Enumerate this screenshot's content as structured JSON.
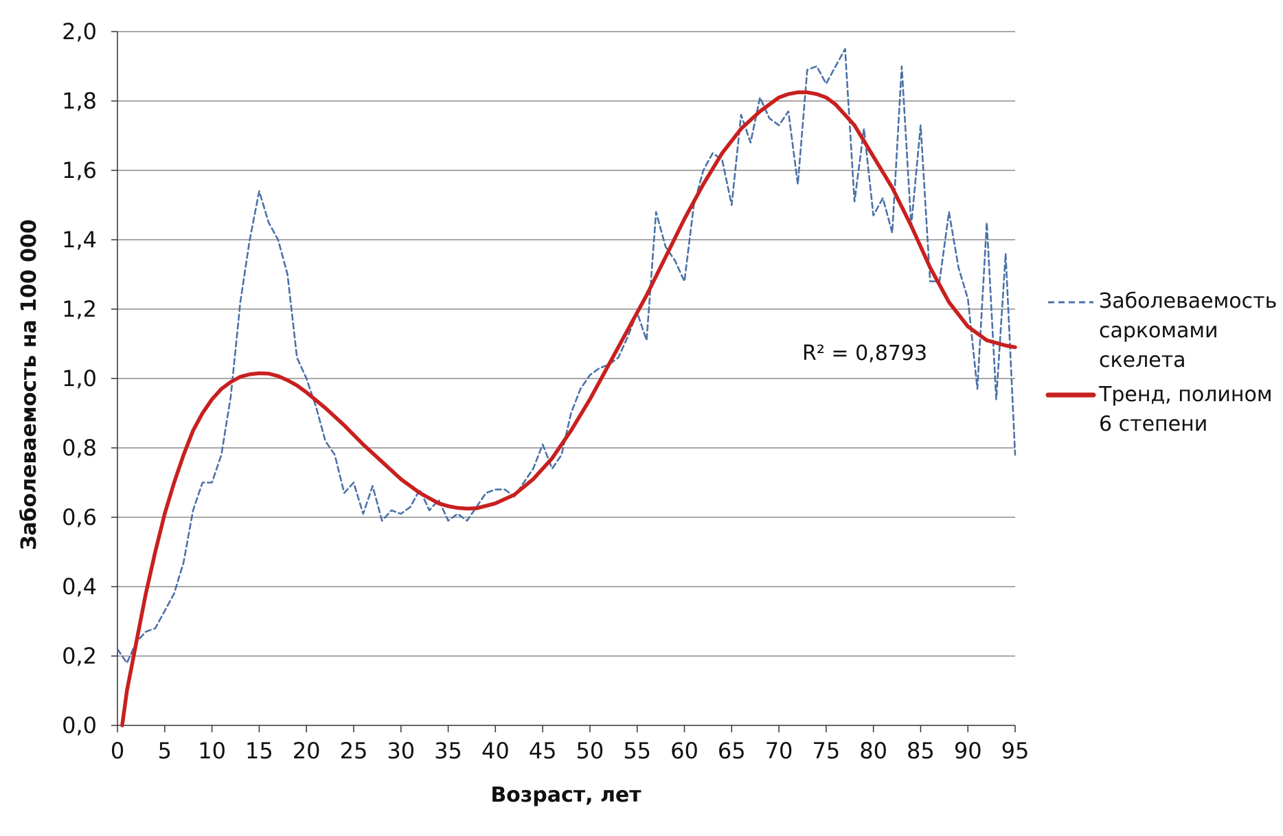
{
  "chart_data": {
    "type": "line",
    "xlabel": "Возраст, лет",
    "ylabel": "Заболеваемость на 100 000",
    "xlim": [
      0,
      95
    ],
    "ylim": [
      0,
      2.0
    ],
    "x_ticks": [
      "0",
      "5",
      "10",
      "15",
      "20",
      "25",
      "30",
      "35",
      "40",
      "45",
      "50",
      "55",
      "60",
      "65",
      "70",
      "75",
      "80",
      "85",
      "90",
      "95"
    ],
    "y_ticks": [
      "0,0",
      "0,2",
      "0,4",
      "0,6",
      "0,8",
      "1,0",
      "1,2",
      "1,4",
      "1,6",
      "1,8",
      "2,0"
    ],
    "y_tick_values": [
      0,
      0.2,
      0.4,
      0.6,
      0.8,
      1.0,
      1.2,
      1.4,
      1.6,
      1.8,
      2.0
    ],
    "grid": "horizontal",
    "legend_position": "right",
    "annotation": "R² = 0,8793",
    "series": [
      {
        "name": "Заболеваемость саркомами скелета",
        "style": "dashed",
        "color": "#4a72a8",
        "x": [
          0,
          1,
          2,
          3,
          4,
          5,
          6,
          7,
          8,
          9,
          10,
          11,
          12,
          13,
          14,
          15,
          16,
          17,
          18,
          19,
          20,
          21,
          22,
          23,
          24,
          25,
          26,
          27,
          28,
          29,
          30,
          31,
          32,
          33,
          34,
          35,
          36,
          37,
          38,
          39,
          40,
          41,
          42,
          43,
          44,
          45,
          46,
          47,
          48,
          49,
          50,
          51,
          52,
          53,
          54,
          55,
          56,
          57,
          58,
          59,
          60,
          61,
          62,
          63,
          64,
          65,
          66,
          67,
          68,
          69,
          70,
          71,
          72,
          73,
          74,
          75,
          76,
          77,
          78,
          79,
          80,
          81,
          82,
          83,
          84,
          85,
          86,
          87,
          88,
          89,
          90,
          91,
          92,
          93,
          94,
          95
        ],
        "values": [
          0.22,
          0.18,
          0.24,
          0.27,
          0.28,
          0.33,
          0.38,
          0.47,
          0.62,
          0.7,
          0.7,
          0.78,
          0.95,
          1.22,
          1.4,
          1.54,
          1.45,
          1.4,
          1.3,
          1.06,
          1.0,
          0.92,
          0.82,
          0.78,
          0.67,
          0.7,
          0.61,
          0.69,
          0.59,
          0.62,
          0.61,
          0.63,
          0.68,
          0.62,
          0.65,
          0.59,
          0.61,
          0.59,
          0.63,
          0.67,
          0.68,
          0.68,
          0.66,
          0.7,
          0.74,
          0.81,
          0.74,
          0.78,
          0.9,
          0.97,
          1.01,
          1.03,
          1.04,
          1.06,
          1.12,
          1.19,
          1.11,
          1.48,
          1.38,
          1.34,
          1.28,
          1.5,
          1.6,
          1.65,
          1.63,
          1.5,
          1.76,
          1.68,
          1.81,
          1.75,
          1.73,
          1.77,
          1.56,
          1.89,
          1.9,
          1.85,
          1.9,
          1.95,
          1.51,
          1.72,
          1.47,
          1.52,
          1.42,
          1.9,
          1.44,
          1.73,
          1.28,
          1.28,
          1.48,
          1.32,
          1.23,
          0.97,
          1.45,
          0.94,
          1.36,
          0.78
        ]
      },
      {
        "name": "Тренд, полином 6 степени",
        "style": "solid",
        "color": "#c8201f",
        "x": [
          0.5,
          1,
          2,
          3,
          4,
          5,
          6,
          7,
          8,
          9,
          10,
          11,
          12,
          13,
          14,
          15,
          16,
          17,
          18,
          19,
          20,
          22,
          24,
          26,
          28,
          30,
          32,
          34,
          35,
          36,
          37,
          38,
          40,
          42,
          44,
          46,
          48,
          50,
          52,
          54,
          56,
          58,
          60,
          62,
          64,
          66,
          68,
          70,
          71,
          72,
          73,
          74,
          75,
          76,
          78,
          80,
          82,
          84,
          86,
          88,
          90,
          92,
          94,
          95
        ],
        "values": [
          0.0,
          0.1,
          0.24,
          0.38,
          0.5,
          0.61,
          0.7,
          0.78,
          0.85,
          0.9,
          0.94,
          0.97,
          0.99,
          1.005,
          1.012,
          1.015,
          1.014,
          1.007,
          0.995,
          0.98,
          0.96,
          0.915,
          0.865,
          0.81,
          0.76,
          0.71,
          0.67,
          0.64,
          0.632,
          0.627,
          0.625,
          0.626,
          0.64,
          0.665,
          0.71,
          0.77,
          0.85,
          0.94,
          1.04,
          1.14,
          1.24,
          1.35,
          1.46,
          1.56,
          1.65,
          1.72,
          1.77,
          1.81,
          1.82,
          1.825,
          1.825,
          1.82,
          1.81,
          1.79,
          1.73,
          1.64,
          1.55,
          1.44,
          1.32,
          1.22,
          1.15,
          1.11,
          1.095,
          1.09
        ]
      }
    ]
  }
}
